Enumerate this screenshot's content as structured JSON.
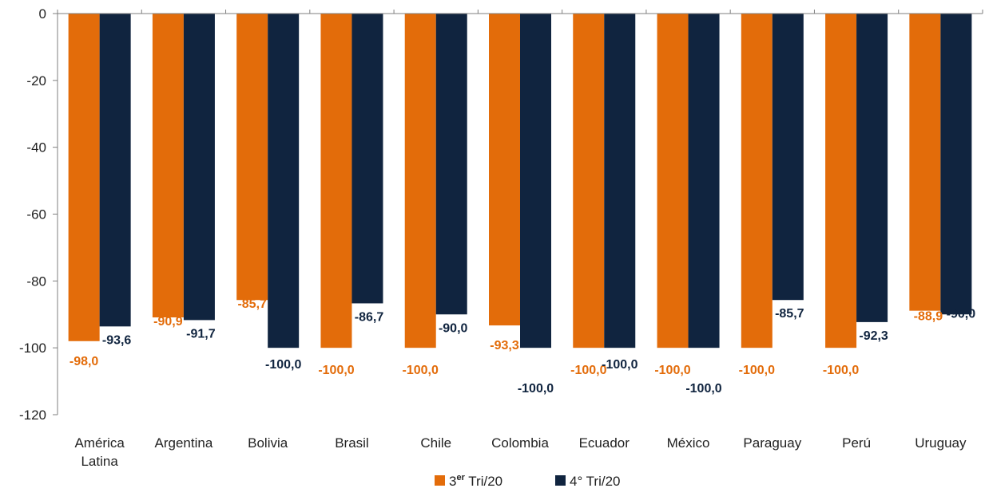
{
  "chart_data": {
    "type": "bar",
    "categories": [
      [
        "América",
        "Latina"
      ],
      [
        "Argentina"
      ],
      [
        "Bolivia"
      ],
      [
        "Brasil"
      ],
      [
        "Chile"
      ],
      [
        "Colombia"
      ],
      [
        "Ecuador"
      ],
      [
        "México"
      ],
      [
        "Paraguay"
      ],
      [
        "Perú"
      ],
      [
        "Uruguay"
      ]
    ],
    "series": [
      {
        "name_base": "3",
        "name_sup": "er",
        "name_rest": " Tri/20",
        "color": "#E36C0A",
        "values": [
          -98.0,
          -90.9,
          -85.7,
          -100.0,
          -100.0,
          -93.3,
          -100.0,
          -100.0,
          -100.0,
          -100.0,
          -88.9
        ],
        "labels": [
          "-98,0",
          "-90,9",
          "-85,7",
          "-100,0",
          "-100,0",
          "-93,3",
          "-100,0",
          "-100,0",
          "-100,0",
          "-100,0",
          "-88,9"
        ]
      },
      {
        "name": "4° Tri/20",
        "color": "#10243F",
        "values": [
          -93.6,
          -91.7,
          -100.0,
          -86.7,
          -90.0,
          -100.0,
          -100.0,
          -100.0,
          -85.7,
          -92.3,
          -90.0
        ],
        "labels": [
          "-93,6",
          "-91,7",
          "-100,0",
          "-86,7",
          "-90,0",
          "-100,0",
          "-100,0",
          "-100,0",
          "-85,7",
          "-92,3",
          "-90,0"
        ]
      }
    ],
    "ylim": [
      -120,
      0
    ],
    "yticks": [
      0,
      -20,
      -40,
      -60,
      -80,
      -100,
      -120
    ],
    "ytick_labels": [
      "0",
      "-20",
      "-40",
      "-60",
      "-80",
      "-100",
      "-120"
    ],
    "title": "",
    "xlabel": "",
    "ylabel": "",
    "legend_position": "bottom",
    "grid": false
  }
}
